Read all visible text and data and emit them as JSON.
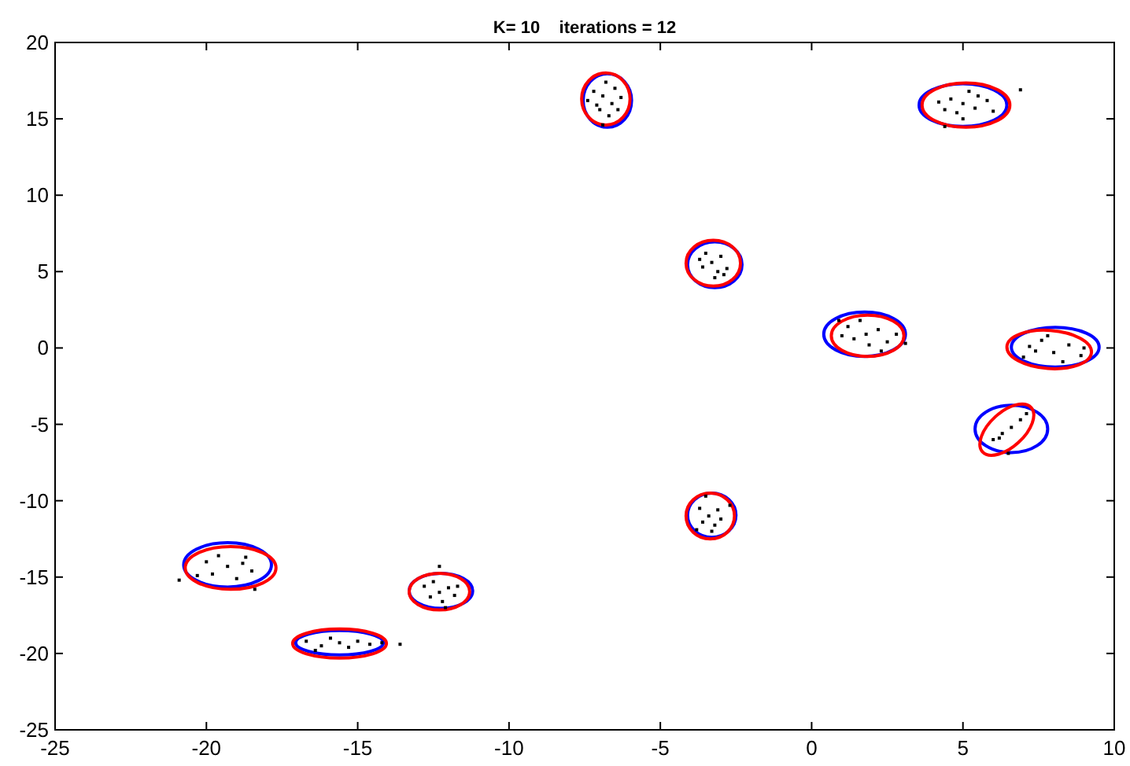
{
  "chart_data": {
    "type": "scatter",
    "title": "K= 10    iterations = 12",
    "xlim": [
      -25,
      10
    ],
    "ylim": [
      -25,
      20
    ],
    "xticks": [
      -25,
      -20,
      -15,
      -10,
      -5,
      0,
      5,
      10
    ],
    "yticks": [
      -25,
      -20,
      -15,
      -10,
      -5,
      0,
      5,
      10,
      15,
      20
    ],
    "grid": false,
    "series": [
      {
        "color": "#000000",
        "marker": "square",
        "x": [
          -6.9,
          -6.6,
          -7.2,
          -6.5,
          -7.0,
          -6.3,
          -7.4,
          -6.7,
          -6.8,
          -7.1,
          -6.4,
          -6.9,
          5.0,
          5.4,
          4.6,
          5.8,
          4.4,
          5.2,
          5.0,
          6.0,
          4.8,
          5.5,
          4.2,
          6.9,
          4.4,
          -3.3,
          -3.0,
          -3.6,
          -3.1,
          -3.5,
          -2.8,
          -3.7,
          -3.2,
          -2.9,
          1.8,
          2.2,
          1.4,
          2.5,
          1.2,
          1.9,
          2.8,
          1.6,
          2.3,
          1.0,
          3.1,
          0.9,
          7.2,
          7.6,
          8.0,
          8.5,
          7.0,
          8.9,
          7.8,
          8.3,
          9.0,
          7.4,
          6.0,
          6.3,
          6.6,
          6.9,
          7.1,
          6.2,
          6.5,
          -3.4,
          -3.1,
          -3.6,
          -3.2,
          -3.7,
          -3.0,
          -3.5,
          -3.8,
          -3.3,
          -2.7,
          -19.3,
          -18.8,
          -19.8,
          -18.5,
          -20.0,
          -19.0,
          -18.7,
          -19.6,
          -20.3,
          -18.4,
          -20.9,
          -15.6,
          -15.0,
          -16.2,
          -14.6,
          -16.7,
          -15.3,
          -15.9,
          -14.2,
          -13.6,
          -16.4,
          -12.3,
          -12.0,
          -12.6,
          -11.8,
          -12.8,
          -12.2,
          -12.5,
          -11.7,
          -12.3,
          -12.1
        ],
        "values": [
          16.5,
          16.0,
          16.8,
          17.0,
          15.6,
          16.4,
          16.2,
          15.2,
          17.4,
          15.9,
          15.6,
          14.6,
          16.0,
          15.7,
          16.3,
          16.2,
          15.6,
          16.8,
          15.0,
          15.5,
          15.4,
          16.5,
          16.1,
          16.9,
          14.5,
          5.6,
          6.0,
          5.3,
          5.0,
          6.2,
          5.2,
          5.8,
          4.6,
          4.8,
          0.9,
          1.2,
          0.6,
          0.4,
          1.4,
          0.2,
          0.9,
          1.8,
          -0.2,
          0.8,
          0.3,
          1.8,
          0.1,
          0.5,
          -0.3,
          0.2,
          -0.6,
          -0.5,
          0.8,
          -0.9,
          0.0,
          -0.2,
          -6.0,
          -5.6,
          -5.2,
          -4.7,
          -4.3,
          -5.9,
          -6.9,
          -11.0,
          -10.6,
          -11.4,
          -11.6,
          -10.5,
          -11.2,
          -9.7,
          -11.9,
          -12.0,
          -10.3,
          -14.3,
          -14.1,
          -14.8,
          -14.6,
          -14.0,
          -15.1,
          -13.7,
          -13.6,
          -14.9,
          -15.8,
          -15.2,
          -19.3,
          -19.2,
          -19.5,
          -19.4,
          -19.2,
          -19.6,
          -19.0,
          -19.3,
          -19.4,
          -19.8,
          -16.0,
          -15.7,
          -16.3,
          -16.2,
          -15.6,
          -16.6,
          -15.3,
          -15.6,
          -14.3,
          -17.0
        ]
      }
    ]
  }
}
